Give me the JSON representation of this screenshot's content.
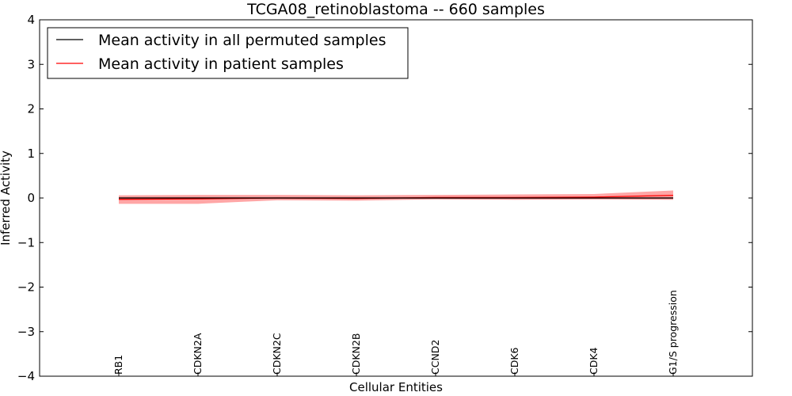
{
  "chart_data": {
    "type": "line",
    "title": "TCGA08_retinoblastoma -- 660 samples",
    "xlabel": "Cellular Entities",
    "ylabel": "Inferred Activity",
    "ylim": [
      -4,
      4
    ],
    "yticks": [
      4,
      3,
      2,
      1,
      0,
      -1,
      -2,
      -3,
      -4
    ],
    "ytick_labels": [
      "4",
      "3",
      "2",
      "1",
      "0",
      "−1",
      "−2",
      "−3",
      "−4"
    ],
    "categories": [
      "RB1",
      "CDKN2A",
      "CDKN2C",
      "CDKN2B",
      "CCND2",
      "CDK6",
      "CDK4",
      "G1/S progression"
    ],
    "legend_position": "top-left",
    "grid": false,
    "series": [
      {
        "name": "Mean activity in all permuted samples",
        "color": "#000000",
        "values": [
          0.0,
          0.0,
          0.0,
          0.0,
          0.0,
          0.0,
          0.0,
          0.0
        ],
        "band_lower": [
          -0.02,
          -0.02,
          -0.02,
          -0.02,
          -0.02,
          -0.02,
          -0.02,
          -0.02
        ],
        "band_upper": [
          0.02,
          0.02,
          0.02,
          0.02,
          0.02,
          0.02,
          0.02,
          0.02
        ]
      },
      {
        "name": "Mean activity in patient samples",
        "color": "#ff0000",
        "band_color": "#ff0000",
        "values": [
          -0.03,
          -0.02,
          0.0,
          -0.01,
          0.01,
          0.01,
          0.02,
          0.06
        ],
        "band_lower": [
          -0.13,
          -0.13,
          -0.05,
          -0.06,
          -0.03,
          -0.04,
          -0.03,
          -0.04
        ],
        "band_upper": [
          0.06,
          0.07,
          0.07,
          0.06,
          0.07,
          0.08,
          0.09,
          0.17
        ]
      }
    ]
  }
}
